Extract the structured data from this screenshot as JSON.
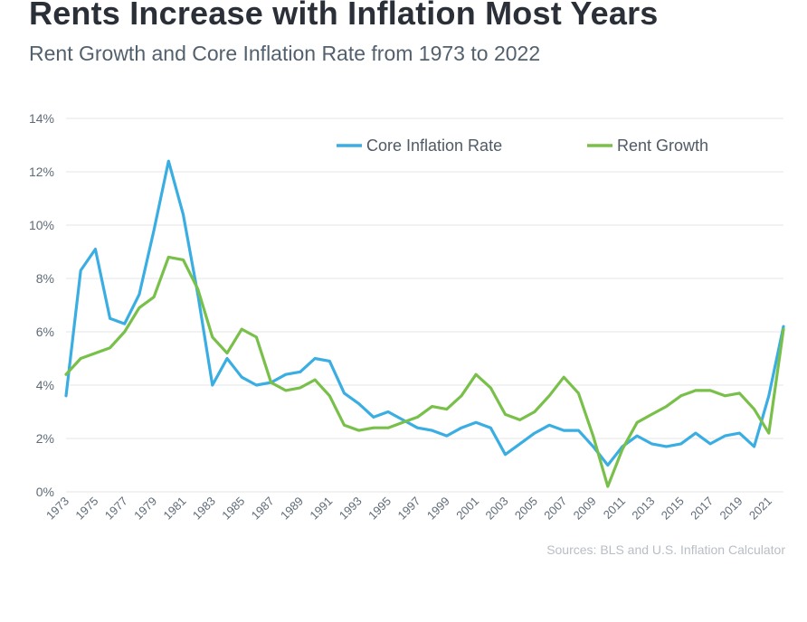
{
  "header": {
    "title": "Rents Increase with Inflation Most Years",
    "subtitle": "Rent Growth and Core Inflation Rate from 1973 to 2022"
  },
  "source": "Sources: BLS and U.S. Inflation Calculator",
  "colors": {
    "core_inflation": "#3aaee2",
    "rent_growth": "#79c04a",
    "grid": "#e6e6e6",
    "tick_text": "#5f6b78"
  },
  "chart_data": {
    "type": "line",
    "title": "",
    "xlabel": "",
    "ylabel": "",
    "ylim": [
      0,
      14
    ],
    "y_tick_labels": [
      "0%",
      "2%",
      "4%",
      "6%",
      "8%",
      "10%",
      "12%",
      "14%"
    ],
    "grid": "horizontal",
    "legend": "top-right",
    "x": [
      1973,
      1974,
      1975,
      1976,
      1977,
      1978,
      1979,
      1980,
      1981,
      1982,
      1983,
      1984,
      1985,
      1986,
      1987,
      1988,
      1989,
      1990,
      1991,
      1992,
      1993,
      1994,
      1995,
      1996,
      1997,
      1998,
      1999,
      2000,
      2001,
      2002,
      2003,
      2004,
      2005,
      2006,
      2007,
      2008,
      2009,
      2010,
      2011,
      2012,
      2013,
      2014,
      2015,
      2016,
      2017,
      2018,
      2019,
      2020,
      2021,
      2022
    ],
    "x_tick_labels": [
      "1973",
      "1975",
      "1977",
      "1979",
      "1981",
      "1983",
      "1985",
      "1987",
      "1989",
      "1991",
      "1993",
      "1995",
      "1997",
      "1999",
      "2001",
      "2003",
      "2005",
      "2007",
      "2009",
      "2011",
      "2013",
      "2015",
      "2017",
      "2019",
      "2021"
    ],
    "series": [
      {
        "name": "Core Inflation Rate",
        "color": "#3aaee2",
        "values": [
          3.6,
          8.3,
          9.1,
          6.5,
          6.3,
          7.4,
          9.8,
          12.4,
          10.4,
          7.4,
          4.0,
          5.0,
          4.3,
          4.0,
          4.1,
          4.4,
          4.5,
          5.0,
          4.9,
          3.7,
          3.3,
          2.8,
          3.0,
          2.7,
          2.4,
          2.3,
          2.1,
          2.4,
          2.6,
          2.4,
          1.4,
          1.8,
          2.2,
          2.5,
          2.3,
          2.3,
          1.7,
          1.0,
          1.7,
          2.1,
          1.8,
          1.7,
          1.8,
          2.2,
          1.8,
          2.1,
          2.2,
          1.7,
          3.6,
          6.2
        ]
      },
      {
        "name": "Rent Growth",
        "color": "#79c04a",
        "values": [
          4.4,
          5.0,
          5.2,
          5.4,
          6.0,
          6.9,
          7.3,
          8.8,
          8.7,
          7.6,
          5.8,
          5.2,
          6.1,
          5.8,
          4.1,
          3.8,
          3.9,
          4.2,
          3.6,
          2.5,
          2.3,
          2.4,
          2.4,
          2.6,
          2.8,
          3.2,
          3.1,
          3.6,
          4.4,
          3.9,
          2.9,
          2.7,
          3.0,
          3.6,
          4.3,
          3.7,
          2.1,
          0.2,
          1.6,
          2.6,
          2.9,
          3.2,
          3.6,
          3.8,
          3.8,
          3.6,
          3.7,
          3.1,
          2.2,
          6.1
        ]
      }
    ]
  }
}
